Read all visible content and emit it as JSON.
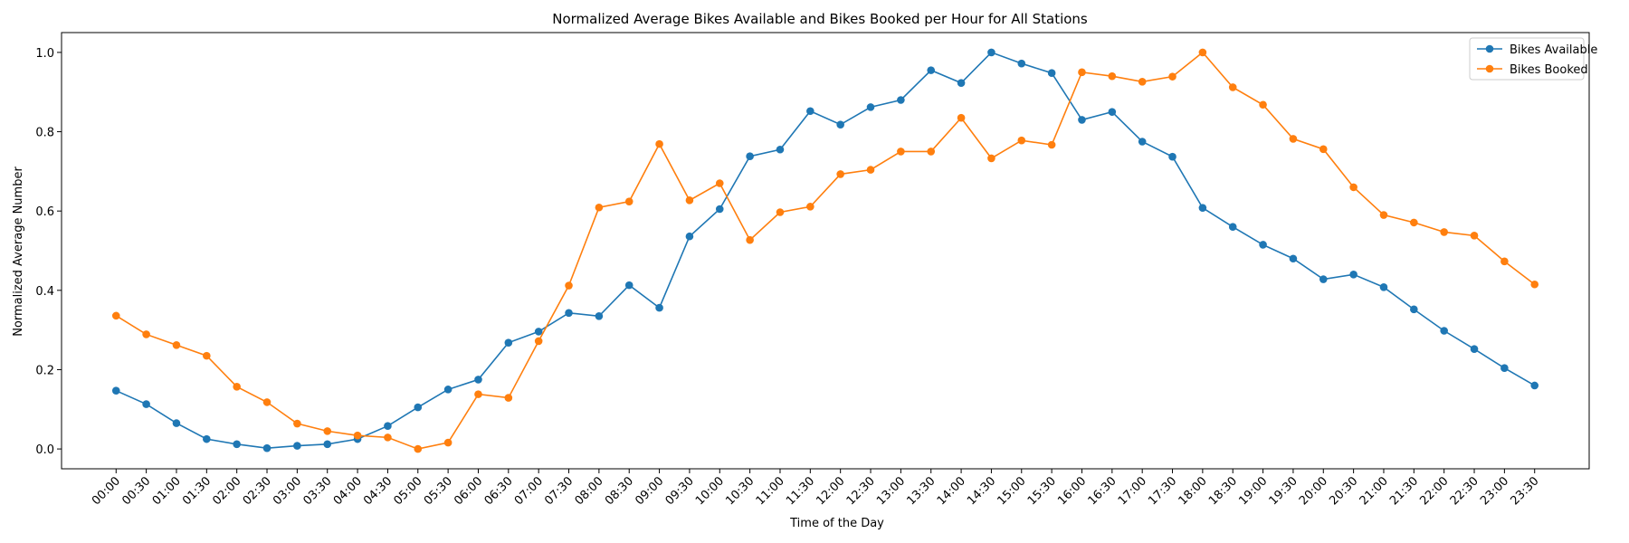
{
  "chart_data": {
    "type": "line",
    "title": "Normalized Average Bikes Available and Bikes Booked per Hour for All Stations",
    "xlabel": "Time of the Day",
    "ylabel": "Normalized Average Number",
    "ylim": [
      -0.05,
      1.05
    ],
    "yticks": [
      "0.0",
      "0.2",
      "0.4",
      "0.6",
      "0.8",
      "1.0"
    ],
    "grid": false,
    "legend_position": "top-right",
    "categories": [
      "00:00",
      "00:30",
      "01:00",
      "01:30",
      "02:00",
      "02:30",
      "03:00",
      "03:30",
      "04:00",
      "04:30",
      "05:00",
      "05:30",
      "06:00",
      "06:30",
      "07:00",
      "07:30",
      "08:00",
      "08:30",
      "09:00",
      "09:30",
      "10:00",
      "10:30",
      "11:00",
      "11:30",
      "12:00",
      "12:30",
      "13:00",
      "13:30",
      "14:00",
      "14:30",
      "15:00",
      "15:30",
      "16:00",
      "16:30",
      "17:00",
      "17:30",
      "18:00",
      "18:30",
      "19:00",
      "19:30",
      "20:00",
      "20:30",
      "21:00",
      "21:30",
      "22:00",
      "22:30",
      "23:00",
      "23:30"
    ],
    "series": [
      {
        "name": "Bikes Available",
        "color": "#1f77b4",
        "values": [
          0.147,
          0.113,
          0.065,
          0.025,
          0.012,
          0.002,
          0.008,
          0.012,
          0.025,
          0.058,
          0.105,
          0.15,
          0.175,
          0.268,
          0.296,
          0.343,
          0.335,
          0.413,
          0.356,
          0.536,
          0.605,
          0.738,
          0.755,
          0.852,
          0.818,
          0.862,
          0.88,
          0.955,
          0.923,
          1.0,
          0.972,
          0.948,
          0.83,
          0.85,
          0.775,
          0.737,
          0.608,
          0.56,
          0.515,
          0.48,
          0.428,
          0.44,
          0.408,
          0.352,
          0.298,
          0.252,
          0.204,
          0.16
        ]
      },
      {
        "name": "Bikes Booked",
        "color": "#ff7f0e",
        "values": [
          0.336,
          0.289,
          0.262,
          0.235,
          0.157,
          0.118,
          0.064,
          0.045,
          0.034,
          0.029,
          0.0,
          0.016,
          0.138,
          0.129,
          0.272,
          0.412,
          0.609,
          0.624,
          0.769,
          0.627,
          0.67,
          0.527,
          0.597,
          0.611,
          0.693,
          0.704,
          0.75,
          0.75,
          0.835,
          0.733,
          0.778,
          0.767,
          0.95,
          0.94,
          0.926,
          0.939,
          1.0,
          0.912,
          0.868,
          0.782,
          0.756,
          0.66,
          0.59,
          0.571,
          0.547,
          0.538,
          0.473,
          0.415
        ]
      }
    ]
  }
}
